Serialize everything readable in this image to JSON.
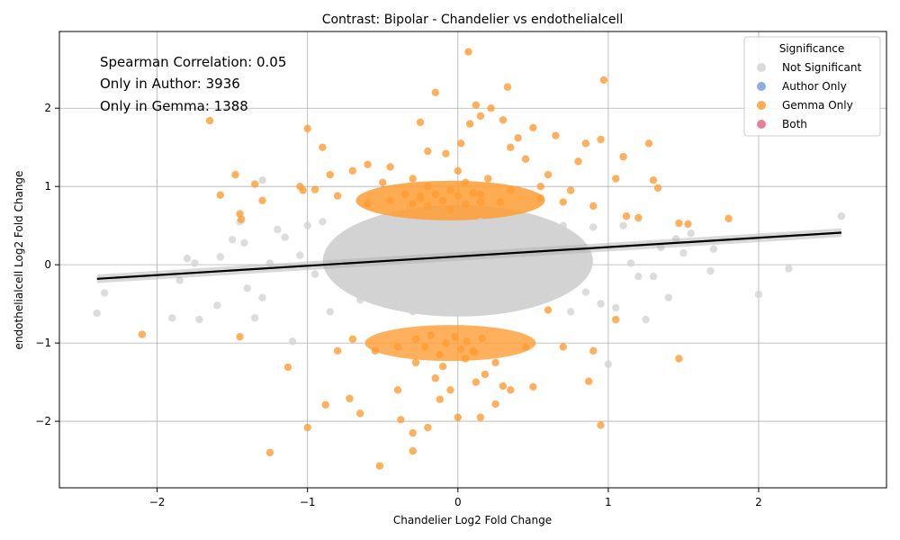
{
  "chart_data": {
    "type": "scatter",
    "title": "Contrast: Bipolar - Chandelier vs endothelialcell",
    "xlabel": "Chandelier Log2 Fold Change",
    "ylabel": "endothelialcell Log2 Fold Change",
    "xlim": [
      -2.65,
      2.85
    ],
    "ylim": [
      -2.85,
      2.98
    ],
    "xticks": [
      -2,
      -1,
      0,
      1,
      2
    ],
    "yticks": [
      -2,
      -1,
      0,
      1,
      2
    ],
    "xtick_labels": [
      "−2",
      "−1",
      "0",
      "1",
      "2"
    ],
    "ytick_labels": [
      "−2",
      "−1",
      "0",
      "1",
      "2"
    ],
    "grid": true,
    "annotations": [
      "Spearman Correlation: 0.05",
      "Only in Author: 3936",
      "Only in Gemma: 1388"
    ],
    "legend": {
      "title": "Significance",
      "placement": "top-right",
      "entries": [
        {
          "label": "Not Significant",
          "color": "#d3d3d3"
        },
        {
          "label": "Author Only",
          "color": "#7f9be0"
        },
        {
          "label": "Gemma Only",
          "color": "#ff9c33"
        },
        {
          "label": "Both",
          "color": "#e06b80"
        }
      ]
    },
    "regression": {
      "x": [
        -2.4,
        2.55
      ],
      "y": [
        -0.18,
        0.41
      ],
      "color": "#000000"
    },
    "series": [
      {
        "name": "Not Significant",
        "color": "#d3d3d3",
        "points": [
          [
            -2.4,
            -0.62
          ],
          [
            -2.35,
            -0.36
          ],
          [
            -1.85,
            -0.2
          ],
          [
            -1.8,
            0.08
          ],
          [
            -1.75,
            0.02
          ],
          [
            -1.9,
            -0.68
          ],
          [
            -1.72,
            -0.7
          ],
          [
            -1.6,
            -0.52
          ],
          [
            -1.58,
            0.1
          ],
          [
            -1.5,
            0.32
          ],
          [
            -1.45,
            0.55
          ],
          [
            -1.42,
            0.28
          ],
          [
            -1.4,
            -0.3
          ],
          [
            -1.35,
            -0.68
          ],
          [
            -1.3,
            -0.42
          ],
          [
            -1.25,
            0.02
          ],
          [
            -1.3,
            1.08
          ],
          [
            -1.2,
            0.45
          ],
          [
            -1.15,
            0.35
          ],
          [
            -1.1,
            -0.98
          ],
          [
            -1.05,
            0.12
          ],
          [
            -1.0,
            0.5
          ],
          [
            -0.95,
            -0.12
          ],
          [
            -0.9,
            0.55
          ],
          [
            -0.85,
            -0.6
          ],
          [
            -0.8,
            0.3
          ],
          [
            -0.75,
            -0.25
          ],
          [
            -0.7,
            0.1
          ],
          [
            -0.65,
            -0.45
          ],
          [
            -0.6,
            0.38
          ],
          [
            -0.55,
            -0.05
          ],
          [
            -0.5,
            0.2
          ],
          [
            -0.45,
            -0.35
          ],
          [
            -0.4,
            0.45
          ],
          [
            -0.35,
            -0.15
          ],
          [
            -0.3,
            0.3
          ],
          [
            -0.25,
            -0.5
          ],
          [
            -0.2,
            0.15
          ],
          [
            -0.15,
            -0.25
          ],
          [
            -0.1,
            0.4
          ],
          [
            -0.05,
            -0.1
          ],
          [
            0.0,
            0.25
          ],
          [
            0.05,
            -0.4
          ],
          [
            0.1,
            0.1
          ],
          [
            0.15,
            -0.2
          ],
          [
            0.2,
            0.35
          ],
          [
            0.25,
            -0.3
          ],
          [
            0.3,
            0.05
          ],
          [
            0.35,
            -0.55
          ],
          [
            0.4,
            0.42
          ],
          [
            0.45,
            -0.12
          ],
          [
            0.5,
            0.28
          ],
          [
            0.55,
            -0.38
          ],
          [
            0.6,
            0.18
          ],
          [
            0.65,
            -0.08
          ],
          [
            0.7,
            0.5
          ],
          [
            0.75,
            -0.6
          ],
          [
            0.8,
            0.22
          ],
          [
            0.85,
            -0.35
          ],
          [
            0.9,
            0.48
          ],
          [
            0.95,
            -0.5
          ],
          [
            1.0,
            -1.27
          ],
          [
            1.05,
            -0.55
          ],
          [
            1.1,
            0.5
          ],
          [
            1.15,
            0.02
          ],
          [
            1.2,
            -0.15
          ],
          [
            1.25,
            -0.7
          ],
          [
            1.3,
            -0.15
          ],
          [
            1.35,
            0.22
          ],
          [
            1.4,
            -0.42
          ],
          [
            1.45,
            0.33
          ],
          [
            1.5,
            0.15
          ],
          [
            1.55,
            0.4
          ],
          [
            1.68,
            -0.08
          ],
          [
            1.7,
            0.2
          ],
          [
            2.0,
            -0.38
          ],
          [
            2.2,
            -0.05
          ],
          [
            2.55,
            0.62
          ],
          [
            -0.22,
            0.02
          ],
          [
            0.12,
            -0.08
          ],
          [
            -0.6,
            -0.3
          ],
          [
            0.3,
            0.45
          ],
          [
            -0.85,
            0.15
          ],
          [
            0.6,
            -0.2
          ],
          [
            -0.3,
            -0.6
          ],
          [
            0.15,
            0.55
          ],
          [
            -0.45,
            0.05
          ],
          [
            0.45,
            0.1
          ],
          [
            -0.12,
            -0.4
          ],
          [
            0.08,
            0.3
          ]
        ]
      },
      {
        "name": "Gemma Only",
        "color": "#ff9c33",
        "points": [
          [
            -2.1,
            -0.89
          ],
          [
            -1.65,
            1.84
          ],
          [
            -1.58,
            0.89
          ],
          [
            -1.48,
            1.15
          ],
          [
            -1.45,
            0.65
          ],
          [
            -1.44,
            0.58
          ],
          [
            -1.45,
            -0.92
          ],
          [
            -1.35,
            1.03
          ],
          [
            -1.3,
            0.82
          ],
          [
            -1.25,
            -2.4
          ],
          [
            -1.13,
            -1.31
          ],
          [
            -1.05,
            1.0
          ],
          [
            -1.03,
            0.95
          ],
          [
            -1.0,
            1.74
          ],
          [
            -1.0,
            -2.08
          ],
          [
            -0.95,
            0.96
          ],
          [
            -0.9,
            1.5
          ],
          [
            -0.88,
            -1.79
          ],
          [
            -0.85,
            1.15
          ],
          [
            -0.8,
            0.88
          ],
          [
            -0.72,
            -1.71
          ],
          [
            -0.7,
            1.2
          ],
          [
            -0.65,
            -1.9
          ],
          [
            -0.6,
            1.28
          ],
          [
            -0.52,
            -2.57
          ],
          [
            -0.45,
            1.25
          ],
          [
            -0.4,
            -1.6
          ],
          [
            -0.38,
            -1.98
          ],
          [
            -0.3,
            -2.38
          ],
          [
            -0.3,
            -2.15
          ],
          [
            -0.25,
            1.82
          ],
          [
            -0.2,
            -2.08
          ],
          [
            -0.2,
            1.45
          ],
          [
            -0.15,
            2.2
          ],
          [
            -0.12,
            -1.72
          ],
          [
            -0.08,
            1.42
          ],
          [
            0.0,
            -1.95
          ],
          [
            0.02,
            1.55
          ],
          [
            0.08,
            1.8
          ],
          [
            0.07,
            2.72
          ],
          [
            0.12,
            2.04
          ],
          [
            0.15,
            1.9
          ],
          [
            0.15,
            -1.95
          ],
          [
            0.22,
            2.0
          ],
          [
            0.25,
            -1.78
          ],
          [
            0.3,
            1.85
          ],
          [
            0.33,
            2.27
          ],
          [
            0.35,
            1.5
          ],
          [
            0.4,
            1.62
          ],
          [
            0.45,
            1.35
          ],
          [
            0.5,
            1.75
          ],
          [
            0.5,
            -1.56
          ],
          [
            0.55,
            1.0
          ],
          [
            0.6,
            1.15
          ],
          [
            0.65,
            1.65
          ],
          [
            0.7,
            0.8
          ],
          [
            0.75,
            0.95
          ],
          [
            0.8,
            1.32
          ],
          [
            0.85,
            1.55
          ],
          [
            0.9,
            0.75
          ],
          [
            0.95,
            1.6
          ],
          [
            0.97,
            2.36
          ],
          [
            1.05,
            1.1
          ],
          [
            1.1,
            1.38
          ],
          [
            1.12,
            0.62
          ],
          [
            1.2,
            0.6
          ],
          [
            1.27,
            1.55
          ],
          [
            1.3,
            1.08
          ],
          [
            1.33,
            0.98
          ],
          [
            1.47,
            0.53
          ],
          [
            1.53,
            0.52
          ],
          [
            1.8,
            0.59
          ],
          [
            1.47,
            -1.2
          ],
          [
            1.05,
            -0.7
          ],
          [
            0.95,
            -2.05
          ],
          [
            0.87,
            -1.49
          ],
          [
            0.9,
            -1.1
          ],
          [
            0.7,
            -1.05
          ],
          [
            0.6,
            -0.58
          ],
          [
            0.35,
            -1.6
          ],
          [
            0.3,
            -1.55
          ],
          [
            -0.5,
            1.05
          ],
          [
            -0.35,
            0.9
          ],
          [
            -0.2,
            1.0
          ],
          [
            -0.05,
            0.95
          ],
          [
            0.05,
            1.05
          ],
          [
            0.15,
            0.9
          ],
          [
            0.2,
            1.1
          ],
          [
            -0.1,
            -1.3
          ],
          [
            0.05,
            -1.2
          ],
          [
            0.18,
            -1.4
          ],
          [
            -0.28,
            -1.25
          ],
          [
            -0.55,
            -1.1
          ],
          [
            -0.7,
            -0.95
          ],
          [
            0.45,
            -1.05
          ],
          [
            0.25,
            -1.25
          ],
          [
            -0.15,
            -1.45
          ],
          [
            0.1,
            -1.1
          ],
          [
            -0.4,
            -1.05
          ],
          [
            -0.8,
            -1.1
          ],
          [
            0.55,
            0.85
          ],
          [
            -0.6,
            0.78
          ],
          [
            0.35,
            0.95
          ],
          [
            -0.25,
            0.88
          ],
          [
            0.0,
            1.2
          ],
          [
            -0.05,
            -1.6
          ],
          [
            0.12,
            -1.5
          ],
          [
            -0.3,
            1.1
          ],
          [
            0.28,
            0.8
          ],
          [
            -0.45,
            0.82
          ]
        ]
      },
      {
        "name": "Gemma Only",
        "color": "#ff9c33",
        "points": [
          [
            -0.3,
            0.78
          ],
          [
            -0.25,
            0.85
          ],
          [
            -0.2,
            0.75
          ],
          [
            -0.15,
            0.9
          ],
          [
            -0.1,
            0.82
          ],
          [
            -0.05,
            0.7
          ],
          [
            0.0,
            0.88
          ],
          [
            0.05,
            0.77
          ],
          [
            0.1,
            0.92
          ],
          [
            0.15,
            0.8
          ],
          [
            -0.28,
            -0.95
          ],
          [
            -0.22,
            -1.05
          ],
          [
            -0.18,
            -0.9
          ],
          [
            -0.12,
            -1.15
          ],
          [
            -0.08,
            -1.0
          ],
          [
            -0.02,
            -0.92
          ],
          [
            0.02,
            -1.08
          ],
          [
            0.06,
            -0.98
          ],
          [
            0.11,
            -1.12
          ],
          [
            0.16,
            -0.94
          ]
        ]
      }
    ]
  }
}
